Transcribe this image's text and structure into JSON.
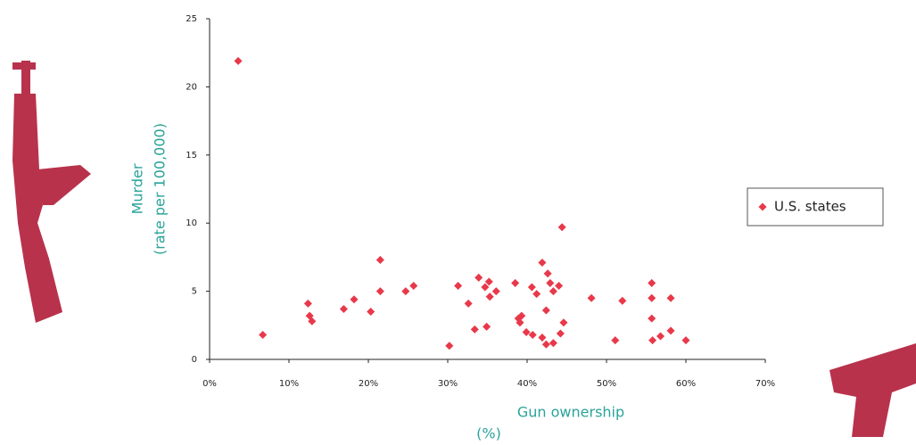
{
  "chart_data": {
    "type": "scatter",
    "x_label": "Gun ownership",
    "x_label_unit": "(%)",
    "y_label": "Murder",
    "y_label_unit": "(rate per 100,000)",
    "x": [
      3.6,
      6.7,
      12.4,
      12.6,
      12.9,
      16.9,
      18.2,
      20.3,
      21.5,
      21.5,
      24.7,
      25.7,
      30.2,
      31.3,
      32.6,
      33.4,
      33.9,
      34.7,
      34.9,
      35.2,
      35.3,
      36.1,
      38.5,
      38.9,
      39.3,
      39.1,
      39.9,
      40.6,
      40.7,
      41.2,
      41.9,
      41.9,
      42.4,
      42.4,
      42.6,
      42.9,
      43.3,
      43.3,
      44.0,
      44.2,
      44.4,
      44.6,
      48.1,
      51.1,
      52.0,
      55.7,
      55.7,
      55.7,
      55.8,
      56.8,
      58.1,
      58.1,
      60.0
    ],
    "series": [
      {
        "name": "U.S. states",
        "color": "#e8394a",
        "values": [
          21.9,
          1.8,
          4.1,
          3.2,
          2.8,
          3.7,
          4.4,
          3.5,
          7.3,
          5.0,
          5.0,
          5.4,
          1.0,
          5.4,
          4.1,
          2.2,
          6.0,
          5.3,
          2.4,
          5.7,
          4.6,
          5.0,
          5.6,
          3.0,
          3.2,
          2.7,
          2.0,
          5.3,
          1.8,
          4.8,
          7.1,
          1.6,
          3.6,
          1.1,
          6.3,
          5.6,
          5.0,
          1.2,
          5.4,
          1.9,
          9.7,
          2.7,
          4.5,
          1.4,
          4.3,
          5.6,
          4.5,
          3.0,
          1.4,
          1.7,
          4.5,
          2.1,
          1.4
        ]
      }
    ],
    "xlim": [
      0,
      70
    ],
    "xticks": [
      {
        "value": 0,
        "label": "0%"
      },
      {
        "value": 10,
        "label": "10%"
      },
      {
        "value": 20,
        "label": "20%"
      },
      {
        "value": 30,
        "label": "30%"
      },
      {
        "value": 40,
        "label": "40%"
      },
      {
        "value": 50,
        "label": "50%"
      },
      {
        "value": 60,
        "label": "60%"
      },
      {
        "value": 70,
        "label": "70%"
      }
    ],
    "ylim": [
      0,
      25
    ],
    "yticks": [
      0,
      5,
      10,
      15,
      20,
      25
    ],
    "grid": false,
    "legend": "right"
  }
}
